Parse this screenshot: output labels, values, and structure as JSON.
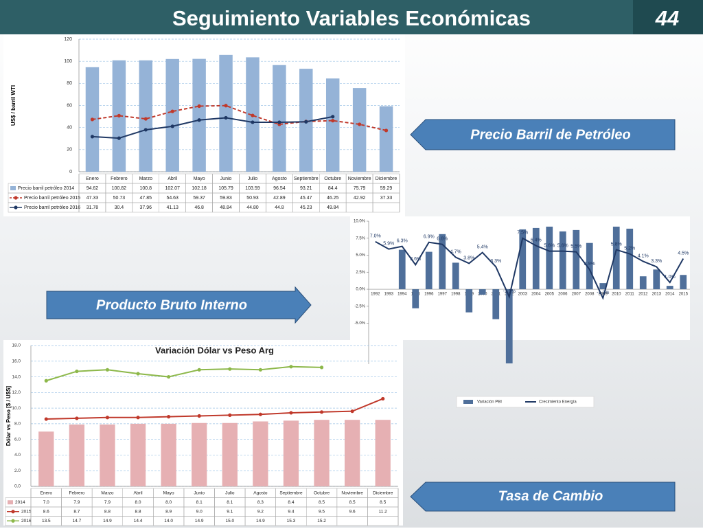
{
  "header": {
    "title": "Seguimiento Variables Económicas",
    "page_number": "44"
  },
  "callouts": [
    "Precio Barril de Petróleo",
    "Producto Bruto Interno",
    "Tasa de Cambio"
  ],
  "chart_data": [
    {
      "type": "bar",
      "y_label": "US$ / barril WTI",
      "ylim": [
        0,
        120
      ],
      "yticks": [
        0,
        20,
        40,
        60,
        80,
        100,
        120
      ],
      "grid": true,
      "data_table": true,
      "categories": [
        "Enero",
        "Febrero",
        "Marzo",
        "Abril",
        "Mayo",
        "Junio",
        "Julio",
        "Agosto",
        "Septiembre",
        "Octubre",
        "Noviembre",
        "Diciembre"
      ],
      "series": [
        {
          "name": "Precio barril petróleo 2014",
          "type": "bar",
          "color": "#95b3d7",
          "values": [
            94.62,
            100.82,
            100.8,
            102.07,
            102.18,
            105.79,
            103.59,
            96.54,
            93.21,
            84.4,
            75.79,
            59.29
          ]
        },
        {
          "name": "Precio barril petróleo 2015",
          "type": "line",
          "dashed": true,
          "color": "#c0392b",
          "values": [
            47.33,
            50.73,
            47.85,
            54.63,
            59.37,
            59.83,
            50.93,
            42.89,
            45.47,
            46.25,
            42.92,
            37.33
          ]
        },
        {
          "name": "Precio barril petróleo 2016",
          "type": "line",
          "color": "#1f3864",
          "values": [
            31.78,
            30.4,
            37.96,
            41.13,
            46.8,
            48.84,
            44.8,
            44.8,
            45.23,
            49.84,
            null,
            null
          ],
          "value_labels": [
            "31.78",
            "30.4",
            "37.96",
            "41.13",
            "46.8",
            "48.84",
            "44.80",
            "44.8",
            "45.23",
            "49.84",
            null,
            null
          ]
        }
      ]
    },
    {
      "type": "bar",
      "ylim": [
        -11,
        10
      ],
      "grid": false,
      "legend": "bottom",
      "yticks": [
        {
          "value": -5,
          "label": "-5.0%"
        },
        {
          "value": -2.5,
          "label": "-2.5%"
        },
        {
          "value": 0,
          "label": "0.0%"
        },
        {
          "value": 2.5,
          "label": "2.5%"
        },
        {
          "value": 5,
          "label": "5.0%"
        },
        {
          "value": 7.5,
          "label": "7.5%"
        },
        {
          "value": 10,
          "label": "10.0%"
        }
      ],
      "categories": [
        "1992",
        "1993",
        "1994",
        "1995",
        "1996",
        "1997",
        "1998",
        "1999",
        "2000",
        "2001",
        "2002",
        "2003",
        "2004",
        "2005",
        "2006",
        "2007",
        "2008",
        "2009",
        "2010",
        "2011",
        "2012",
        "2013",
        "2014",
        "2015"
      ],
      "series": [
        {
          "name": "Variación PBI",
          "type": "bar",
          "color": "#4f6f9a",
          "values": [
            null,
            null,
            5.8,
            -2.8,
            5.5,
            8.1,
            3.9,
            -3.4,
            -0.8,
            -4.4,
            -10.9,
            8.8,
            9.0,
            9.2,
            8.5,
            8.7,
            6.8,
            0.9,
            9.2,
            8.9,
            1.9,
            2.9,
            0.5,
            2.1
          ]
        },
        {
          "name": "Crecimiento Energía",
          "type": "line",
          "color": "#1f3864",
          "show_labels": true,
          "values": [
            7.0,
            5.9,
            6.3,
            3.6,
            6.9,
            6.6,
            4.7,
            3.8,
            5.4,
            3.3,
            -1.1,
            7.5,
            6.4,
            5.6,
            5.6,
            5.5,
            2.9,
            -1.3,
            5.8,
            5.2,
            4.1,
            3.3,
            1.0,
            4.5
          ],
          "value_labels": [
            "7.0%",
            "5.9%",
            "6.3%",
            "3.6%",
            "6.9%",
            "6.6%",
            "4.7%",
            "3.8%",
            "5.4%",
            "3.3%",
            "-1.1%",
            "7.5%",
            "6.4%",
            "5.6%",
            "5.6%",
            "5.5%",
            "2.9%",
            "-1.3%",
            "5.8%",
            "5.2%",
            "4.1%",
            "3.3%",
            "1.0%",
            "4.5%"
          ]
        }
      ]
    },
    {
      "type": "bar",
      "title": "Variación Dólar vs Peso Arg",
      "y_label": "Dólar vs Peso [$ / U$S]",
      "ylim": [
        0,
        18
      ],
      "grid": true,
      "data_table": true,
      "yticks": [
        {
          "value": 0,
          "label": "0.0"
        },
        {
          "value": 2,
          "label": "2.0"
        },
        {
          "value": 4,
          "label": "4.0"
        },
        {
          "value": 6,
          "label": "6.0"
        },
        {
          "value": 8,
          "label": "8.0"
        },
        {
          "value": 10,
          "label": "10.0"
        },
        {
          "value": 12,
          "label": "12.0"
        },
        {
          "value": 14,
          "label": "14.0"
        },
        {
          "value": 16,
          "label": "16.0"
        },
        {
          "value": 18,
          "label": "18.0"
        }
      ],
      "categories": [
        "Enero",
        "Febrero",
        "Marzo",
        "Abril",
        "Mayo",
        "Junio",
        "Julio",
        "Agosto",
        "Septiembre",
        "Octubre",
        "Noviembre",
        "Diciembre"
      ],
      "series": [
        {
          "name": "2014",
          "type": "bar",
          "color": "#e6b0b3",
          "values": [
            7.0,
            7.9,
            7.9,
            8.0,
            8.0,
            8.1,
            8.1,
            8.3,
            8.4,
            8.5,
            8.5,
            8.5
          ],
          "value_labels": [
            "7.0",
            "7.9",
            "7.9",
            "8.0",
            "8.0",
            "8.1",
            "8.1",
            "8.3",
            "8.4",
            "8.5",
            "8.5",
            "8.5"
          ]
        },
        {
          "name": "2015",
          "type": "line",
          "color": "#c0392b",
          "values": [
            8.6,
            8.7,
            8.8,
            8.8,
            8.9,
            9.0,
            9.1,
            9.2,
            9.4,
            9.5,
            9.6,
            11.2
          ],
          "value_labels": [
            "8.6",
            "8.7",
            "8.8",
            "8.8",
            "8.9",
            "9.0",
            "9.1",
            "9.2",
            "9.4",
            "9.5",
            "9.6",
            "11.2"
          ]
        },
        {
          "name": "2016",
          "type": "line",
          "color": "#8db84a",
          "values": [
            13.5,
            14.7,
            14.9,
            14.4,
            14.0,
            14.9,
            15.0,
            14.9,
            15.3,
            15.2,
            null,
            null
          ],
          "value_labels": [
            "13.5",
            "14.7",
            "14.9",
            "14.4",
            "14.0",
            "14.9",
            "15.0",
            "14.9",
            "15.3",
            "15.2",
            null,
            null
          ]
        }
      ]
    }
  ]
}
